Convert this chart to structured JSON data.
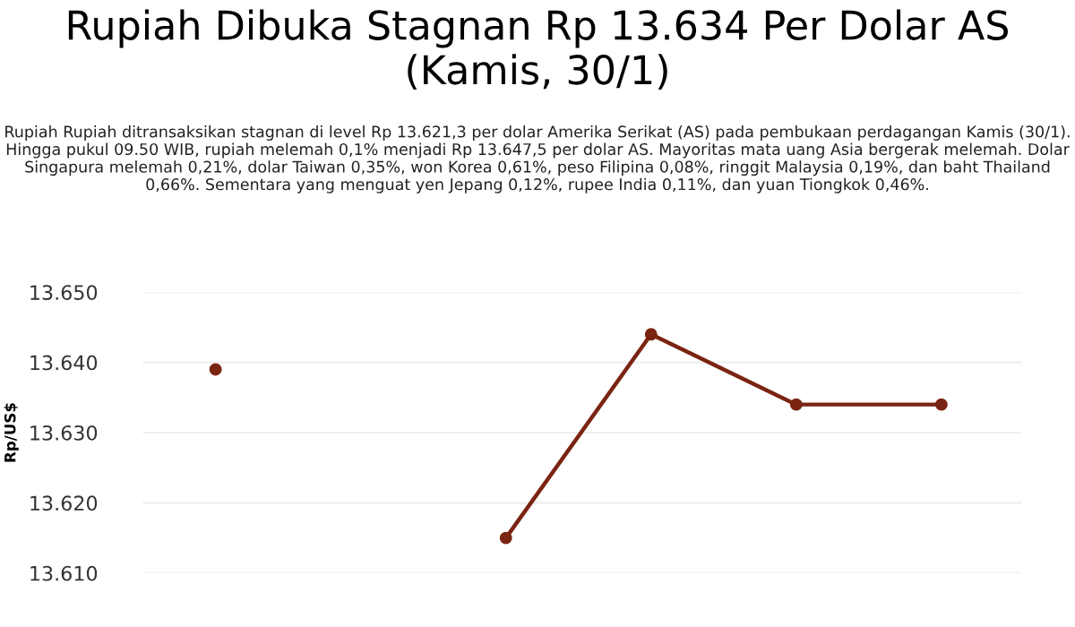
{
  "chart_data": {
    "type": "line",
    "title": "Rupiah Dibuka Stagnan Rp 13.634 Per Dolar AS (Kamis, 30/1)",
    "subtitle": "Rupiah Rupiah ditransaksikan stagnan di level Rp 13.621,3 per dolar Amerika Serikat (AS) pada pembukaan perdagangan Kamis (30/1). Hingga pukul 09.50 WIB, rupiah melemah 0,1% menjadi Rp 13.647,5 per dolar AS. Mayoritas mata uang Asia bergerak melemah. Dolar Singapura melemah 0,21%, dolar Taiwan 0,35%, won Korea 0,61%, peso Filipina 0,08%, ringgit Malaysia 0,19%, dan baht Thailand 0,66%. Sementara yang menguat yen Jepang 0,12%, rupee India 0,11%, dan yuan Tiongkok 0,46%.",
    "ylabel": "Rp/US$",
    "categories": [
      null,
      null,
      null,
      null,
      null,
      null
    ],
    "series": [
      {
        "color": "#7a2412",
        "values": [
          13639,
          null,
          13615,
          13644,
          13634,
          13634
        ]
      }
    ],
    "ylim": [
      13610,
      13650
    ],
    "yticks": [
      {
        "value": 13610,
        "label": "13.610"
      },
      {
        "value": 13620,
        "label": "13.620"
      },
      {
        "value": 13630,
        "label": "13.630"
      },
      {
        "value": 13640,
        "label": "13.640"
      },
      {
        "value": 13650,
        "label": "13.650"
      }
    ],
    "grid": "y",
    "marker": "circle",
    "line_style": "solid",
    "tick_labels": "y",
    "legend": false
  }
}
